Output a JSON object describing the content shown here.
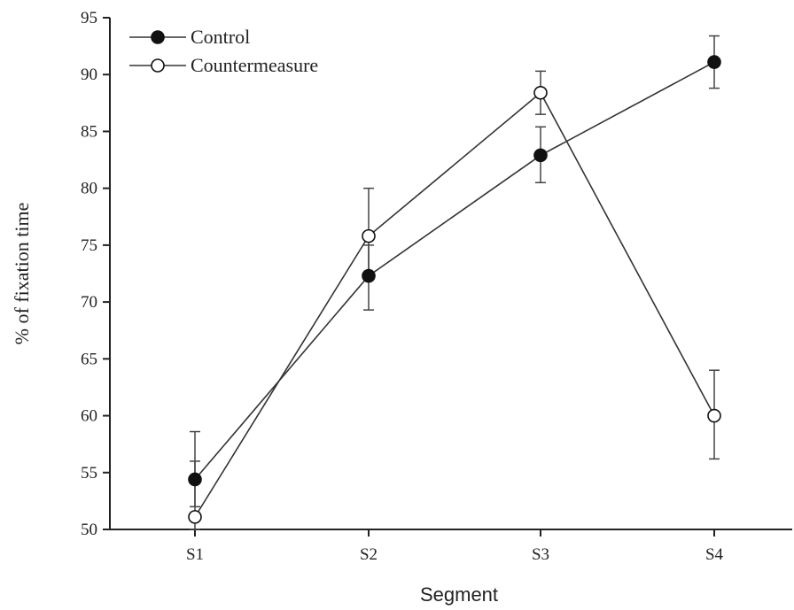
{
  "chart_data": {
    "type": "line",
    "title": "",
    "xlabel": "Segment",
    "ylabel": "% of fixation time",
    "categories": [
      "S1",
      "S2",
      "S3",
      "S4"
    ],
    "ylim": [
      50,
      95
    ],
    "yticks": [
      50,
      55,
      60,
      65,
      70,
      75,
      80,
      85,
      90,
      95
    ],
    "grid": false,
    "legend_position": "top-left",
    "series": [
      {
        "name": "Control",
        "marker": "filled-circle",
        "color": "#111111",
        "values": [
          54.4,
          72.3,
          82.9,
          91.1
        ],
        "err_low": [
          52.0,
          69.3,
          80.5,
          88.8
        ],
        "err_high": [
          56.0,
          75.0,
          85.4,
          93.4
        ]
      },
      {
        "name": "Countermeasure",
        "marker": "open-circle",
        "color": "#111111",
        "values": [
          51.1,
          75.8,
          88.4,
          60.0
        ],
        "err_low": [
          50.0,
          72.5,
          86.5,
          56.2
        ],
        "err_high": [
          58.6,
          80.0,
          90.3,
          64.0
        ]
      }
    ]
  }
}
